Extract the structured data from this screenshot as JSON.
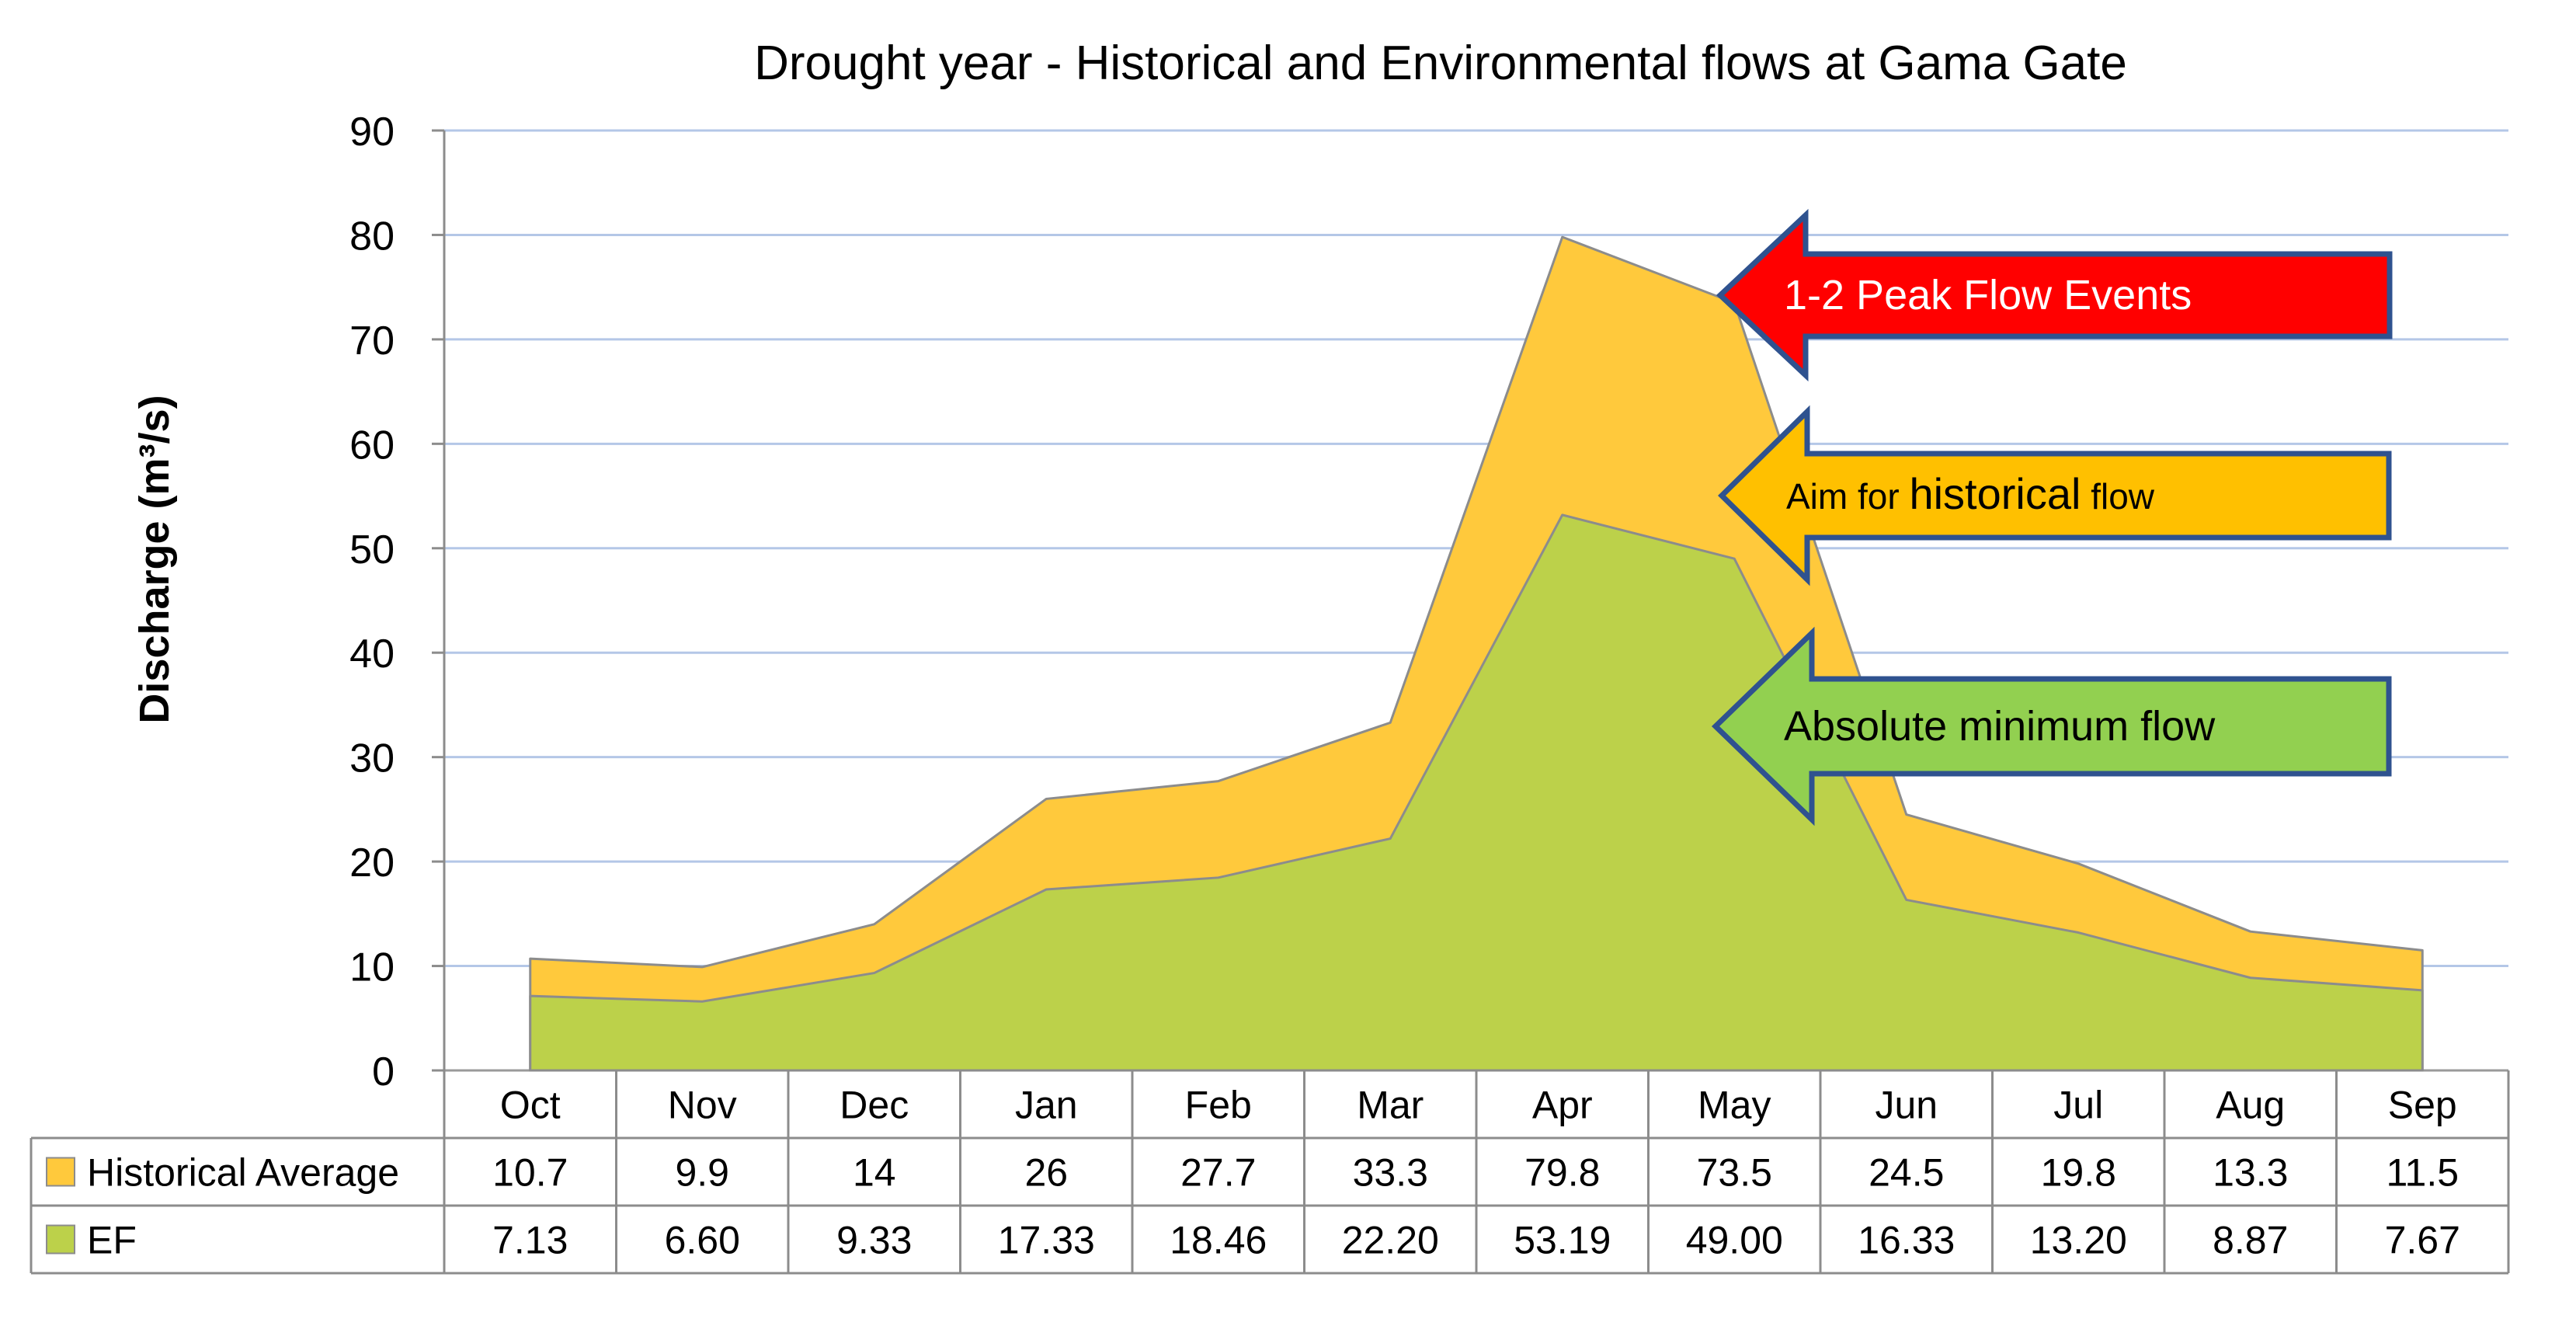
{
  "chart_data": {
    "type": "area",
    "title": "Drought year - Historical and Environmental flows at Gama Gate",
    "ylabel": "Discharge (m³/s)",
    "xlabel": "",
    "ylim": [
      0,
      90
    ],
    "yticks": [
      "0",
      "10",
      "20",
      "30",
      "40",
      "50",
      "60",
      "70",
      "80",
      "90"
    ],
    "grid": true,
    "categories": [
      "Oct",
      "Nov",
      "Dec",
      "Jan",
      "Feb",
      "Mar",
      "Apr",
      "May",
      "Jun",
      "Jul",
      "Aug",
      "Sep"
    ],
    "series": [
      {
        "name": "Historical Average",
        "color": "#FFC93C",
        "values": [
          10.7,
          9.9,
          14,
          26,
          27.7,
          33.3,
          79.8,
          73.5,
          24.5,
          19.8,
          13.3,
          11.5
        ],
        "labels": [
          "10.7",
          "9.9",
          "14",
          "26",
          "27.7",
          "33.3",
          "79.8",
          "73.5",
          "24.5",
          "19.8",
          "13.3",
          "11.5"
        ]
      },
      {
        "name": "EF",
        "color": "#BCD14A",
        "values": [
          7.13,
          6.6,
          9.33,
          17.33,
          18.46,
          22.2,
          53.19,
          49.0,
          16.33,
          13.2,
          8.87,
          7.67
        ],
        "labels": [
          "7.13",
          "6.60",
          "9.33",
          "17.33",
          "18.46",
          "22.20",
          "53.19",
          "49.00",
          "16.33",
          "13.20",
          "8.87",
          "7.67"
        ]
      }
    ],
    "annotations": [
      {
        "text": "1-2 Peak Flow Events",
        "color": "#FF0000",
        "text_color": "#FFFFFF"
      },
      {
        "text_before": "Aim for ",
        "text_emph": "historical",
        "text_after": " flow",
        "color": "#FFC000",
        "text_color": "#000000"
      },
      {
        "text": "Absolute minimum flow",
        "color": "#92D050",
        "text_color": "#000000"
      }
    ]
  }
}
